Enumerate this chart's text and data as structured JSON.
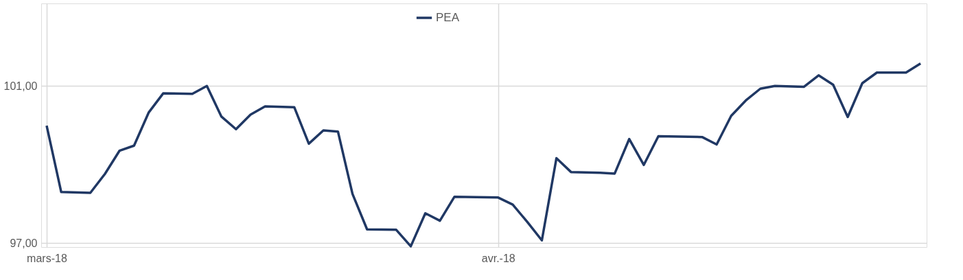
{
  "chart_data": {
    "type": "line",
    "x": [
      "2018-03-01",
      "2018-03-02",
      "2018-03-04",
      "2018-03-05",
      "2018-03-06",
      "2018-03-07",
      "2018-03-08",
      "2018-03-09",
      "2018-03-11",
      "2018-03-12",
      "2018-03-13",
      "2018-03-14",
      "2018-03-15",
      "2018-03-16",
      "2018-03-18",
      "2018-03-19",
      "2018-03-20",
      "2018-03-21",
      "2018-03-22",
      "2018-03-23",
      "2018-03-25",
      "2018-03-26",
      "2018-03-27",
      "2018-03-28",
      "2018-03-29",
      "2018-04-01",
      "2018-04-02",
      "2018-04-03",
      "2018-04-04",
      "2018-04-05",
      "2018-04-06",
      "2018-04-08",
      "2018-04-09",
      "2018-04-10",
      "2018-04-11",
      "2018-04-12",
      "2018-04-15",
      "2018-04-16",
      "2018-04-17",
      "2018-04-18",
      "2018-04-19",
      "2018-04-20",
      "2018-04-22",
      "2018-04-23",
      "2018-04-24",
      "2018-04-25",
      "2018-04-26",
      "2018-04-27",
      "2018-04-29",
      "2018-04-30"
    ],
    "series": [
      {
        "name": "PEA",
        "color": "#203864",
        "values": [
          99.99,
          98.3,
          98.28,
          98.76,
          99.35,
          99.48,
          100.32,
          100.81,
          100.8,
          101.0,
          100.22,
          99.9,
          100.27,
          100.48,
          100.46,
          99.53,
          99.87,
          99.84,
          98.25,
          97.35,
          97.34,
          96.92,
          97.76,
          97.57,
          98.18,
          98.16,
          97.98,
          97.54,
          97.07,
          99.16,
          98.81,
          98.79,
          98.77,
          99.65,
          98.99,
          99.72,
          99.7,
          99.51,
          100.24,
          100.63,
          100.93,
          101.0,
          100.98,
          101.27,
          101.03,
          100.21,
          101.07,
          101.34,
          101.34,
          101.57
        ]
      }
    ],
    "xlim": [
      "2018-02-28T15:00",
      "2018-04-30T10:00"
    ],
    "xticks": [
      {
        "value": "2018-03-01",
        "label": "mars-18"
      },
      {
        "value": "2018-04-01",
        "label": "avr.-18"
      }
    ],
    "ylim": [
      96.9,
      103.1
    ],
    "yticks": [
      {
        "value": 97,
        "label": "97,00"
      },
      {
        "value": 101,
        "label": "101,00"
      }
    ],
    "grid": true,
    "legend": "top",
    "marker": "none",
    "line_style": "solid"
  }
}
